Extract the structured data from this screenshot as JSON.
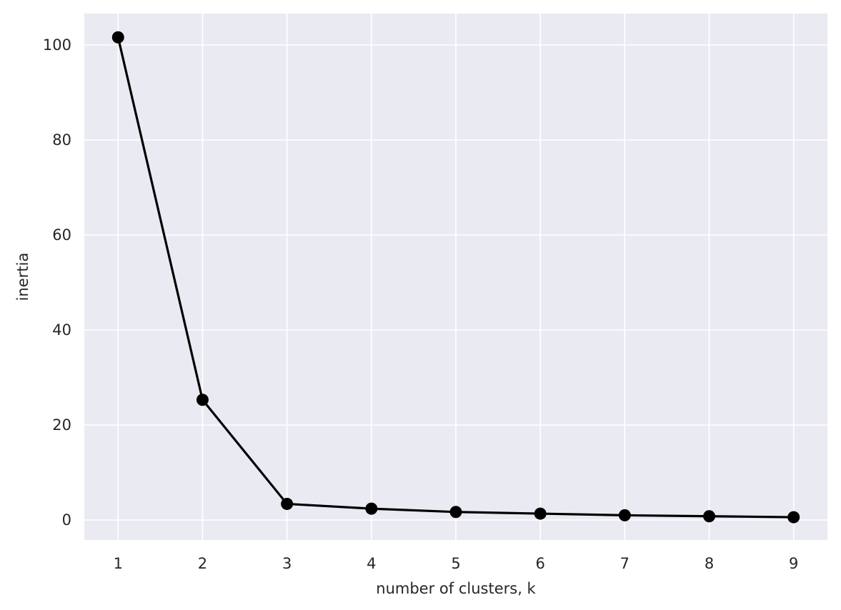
{
  "chart_data": {
    "type": "line",
    "title": "",
    "xlabel": "number of clusters, k",
    "ylabel": "inertia",
    "x": [
      1,
      2,
      3,
      4,
      5,
      6,
      7,
      8,
      9
    ],
    "series": [
      {
        "values": [
          101.6,
          25.3,
          3.4,
          2.4,
          1.7,
          1.35,
          1.0,
          0.8,
          0.6
        ]
      }
    ],
    "xlim": [
      0.6,
      9.4
    ],
    "ylim": [
      -4.2,
      106.6
    ],
    "xticks": [
      1,
      2,
      3,
      4,
      5,
      6,
      7,
      8,
      9
    ],
    "yticks": [
      0,
      20,
      40,
      60,
      80,
      100
    ],
    "grid": true,
    "style": {
      "background": "#eaeaf2",
      "grid_color": "#ffffff",
      "line_color": "#000000",
      "marker_color": "#000000"
    }
  }
}
